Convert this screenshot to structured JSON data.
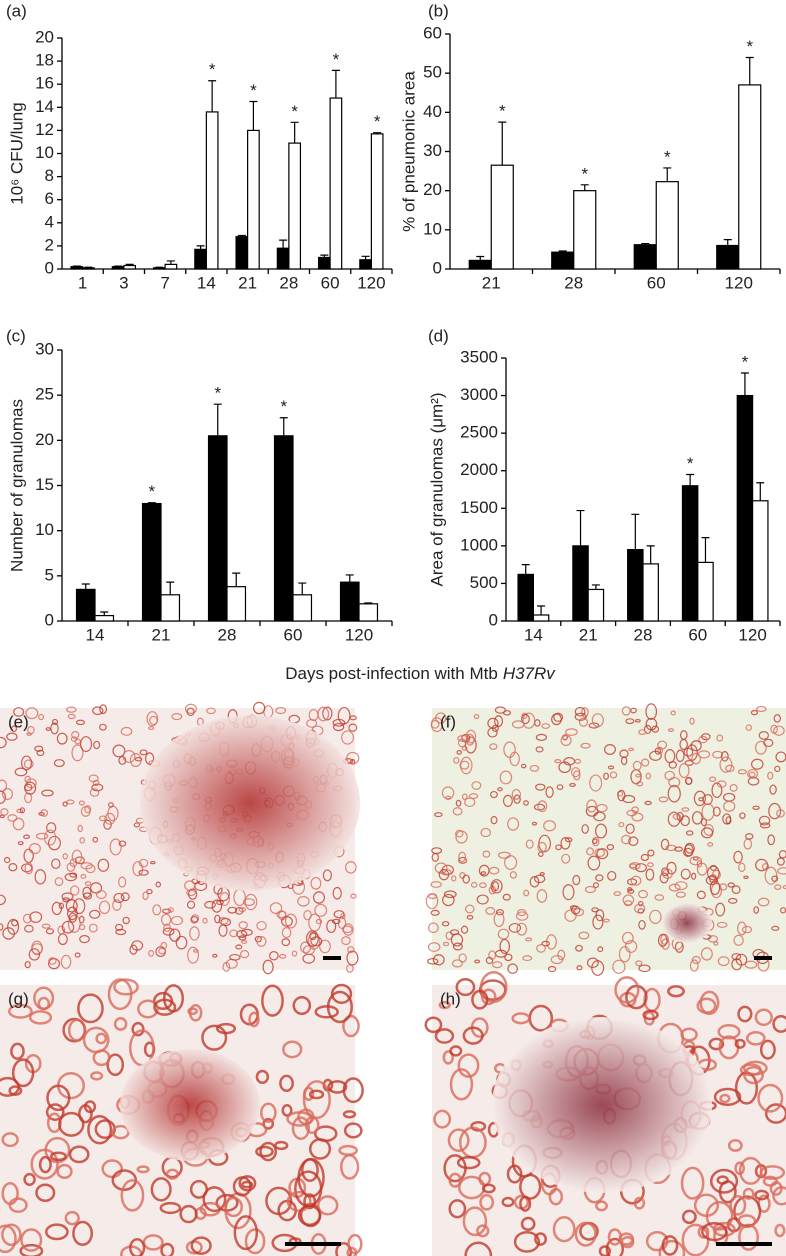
{
  "chart_data": [
    {
      "type": "bar",
      "panel": "(a)",
      "ylabel": "10⁶ CFU/lung",
      "star": "*",
      "categories": [
        "1",
        "3",
        "7",
        "14",
        "21",
        "28",
        "60",
        "120"
      ],
      "series": [
        {
          "color": "#000000",
          "values": [
            0.2,
            0.2,
            0.1,
            1.7,
            2.8,
            1.8,
            1.0,
            0.8
          ],
          "errors": [
            0.05,
            0.05,
            0.05,
            0.3,
            0.1,
            0.7,
            0.2,
            0.3
          ],
          "stars": [
            false,
            false,
            false,
            false,
            false,
            false,
            false,
            false
          ]
        },
        {
          "color": "#ffffff",
          "values": [
            0.1,
            0.3,
            0.4,
            13.6,
            12.0,
            10.9,
            14.8,
            11.7
          ],
          "errors": [
            0.05,
            0.1,
            0.3,
            2.7,
            2.5,
            1.8,
            2.4,
            0.1
          ],
          "stars": [
            false,
            false,
            false,
            true,
            true,
            true,
            true,
            true
          ]
        }
      ],
      "ylim": [
        0,
        20
      ],
      "yticks": [
        0,
        2,
        4,
        6,
        8,
        10,
        12,
        14,
        16,
        18,
        20
      ]
    },
    {
      "type": "bar",
      "panel": "(b)",
      "ylabel": "% of pneumonic area",
      "star": "*",
      "categories": [
        "21",
        "28",
        "60",
        "120"
      ],
      "series": [
        {
          "color": "#000000",
          "values": [
            2.2,
            4.3,
            6.2,
            6.0
          ],
          "errors": [
            1.0,
            0.3,
            0.3,
            1.5
          ],
          "stars": [
            false,
            false,
            false,
            false
          ]
        },
        {
          "color": "#ffffff",
          "values": [
            26.5,
            20.0,
            22.3,
            47.0
          ],
          "errors": [
            11.0,
            1.5,
            3.5,
            7.0
          ],
          "stars": [
            true,
            true,
            true,
            true
          ]
        }
      ],
      "ylim": [
        0,
        60
      ],
      "yticks": [
        0,
        10,
        20,
        30,
        40,
        50,
        60
      ]
    },
    {
      "type": "bar",
      "panel": "(c)",
      "ylabel": "Number of granulomas",
      "star": "*",
      "categories": [
        "14",
        "21",
        "28",
        "60",
        "120"
      ],
      "series": [
        {
          "color": "#000000",
          "values": [
            3.5,
            13.0,
            20.5,
            20.5,
            4.3
          ],
          "errors": [
            0.6,
            0.1,
            3.5,
            2.0,
            0.8
          ],
          "stars": [
            false,
            true,
            true,
            true,
            false
          ]
        },
        {
          "color": "#ffffff",
          "values": [
            0.6,
            2.9,
            3.8,
            2.9,
            1.9
          ],
          "errors": [
            0.4,
            1.4,
            1.5,
            1.3,
            0.1
          ],
          "stars": [
            false,
            false,
            false,
            false,
            false
          ]
        }
      ],
      "ylim": [
        0,
        30
      ],
      "yticks": [
        0,
        5,
        10,
        15,
        20,
        25,
        30
      ]
    },
    {
      "type": "bar",
      "panel": "(d)",
      "ylabel": "Area of granulomas (μm²)",
      "star": "*",
      "categories": [
        "14",
        "21",
        "28",
        "60",
        "120"
      ],
      "series": [
        {
          "color": "#000000",
          "values": [
            620,
            1000,
            950,
            1800,
            3000
          ],
          "errors": [
            130,
            470,
            470,
            150,
            300
          ],
          "stars": [
            false,
            false,
            false,
            true,
            true
          ]
        },
        {
          "color": "#ffffff",
          "values": [
            80,
            420,
            760,
            780,
            1600
          ],
          "errors": [
            120,
            60,
            240,
            330,
            240
          ],
          "stars": [
            false,
            false,
            false,
            false,
            false
          ]
        }
      ],
      "ylim": [
        0,
        3500
      ],
      "yticks": [
        0,
        500,
        1000,
        1500,
        2000,
        2500,
        3000,
        3500
      ]
    }
  ],
  "shared_xlabel": {
    "text": "Days post-infection with Mtb",
    "italic": "H37Rv"
  },
  "images": [
    {
      "label": "(e)"
    },
    {
      "label": "(f)"
    },
    {
      "label": "(g)"
    },
    {
      "label": "(h)"
    }
  ]
}
